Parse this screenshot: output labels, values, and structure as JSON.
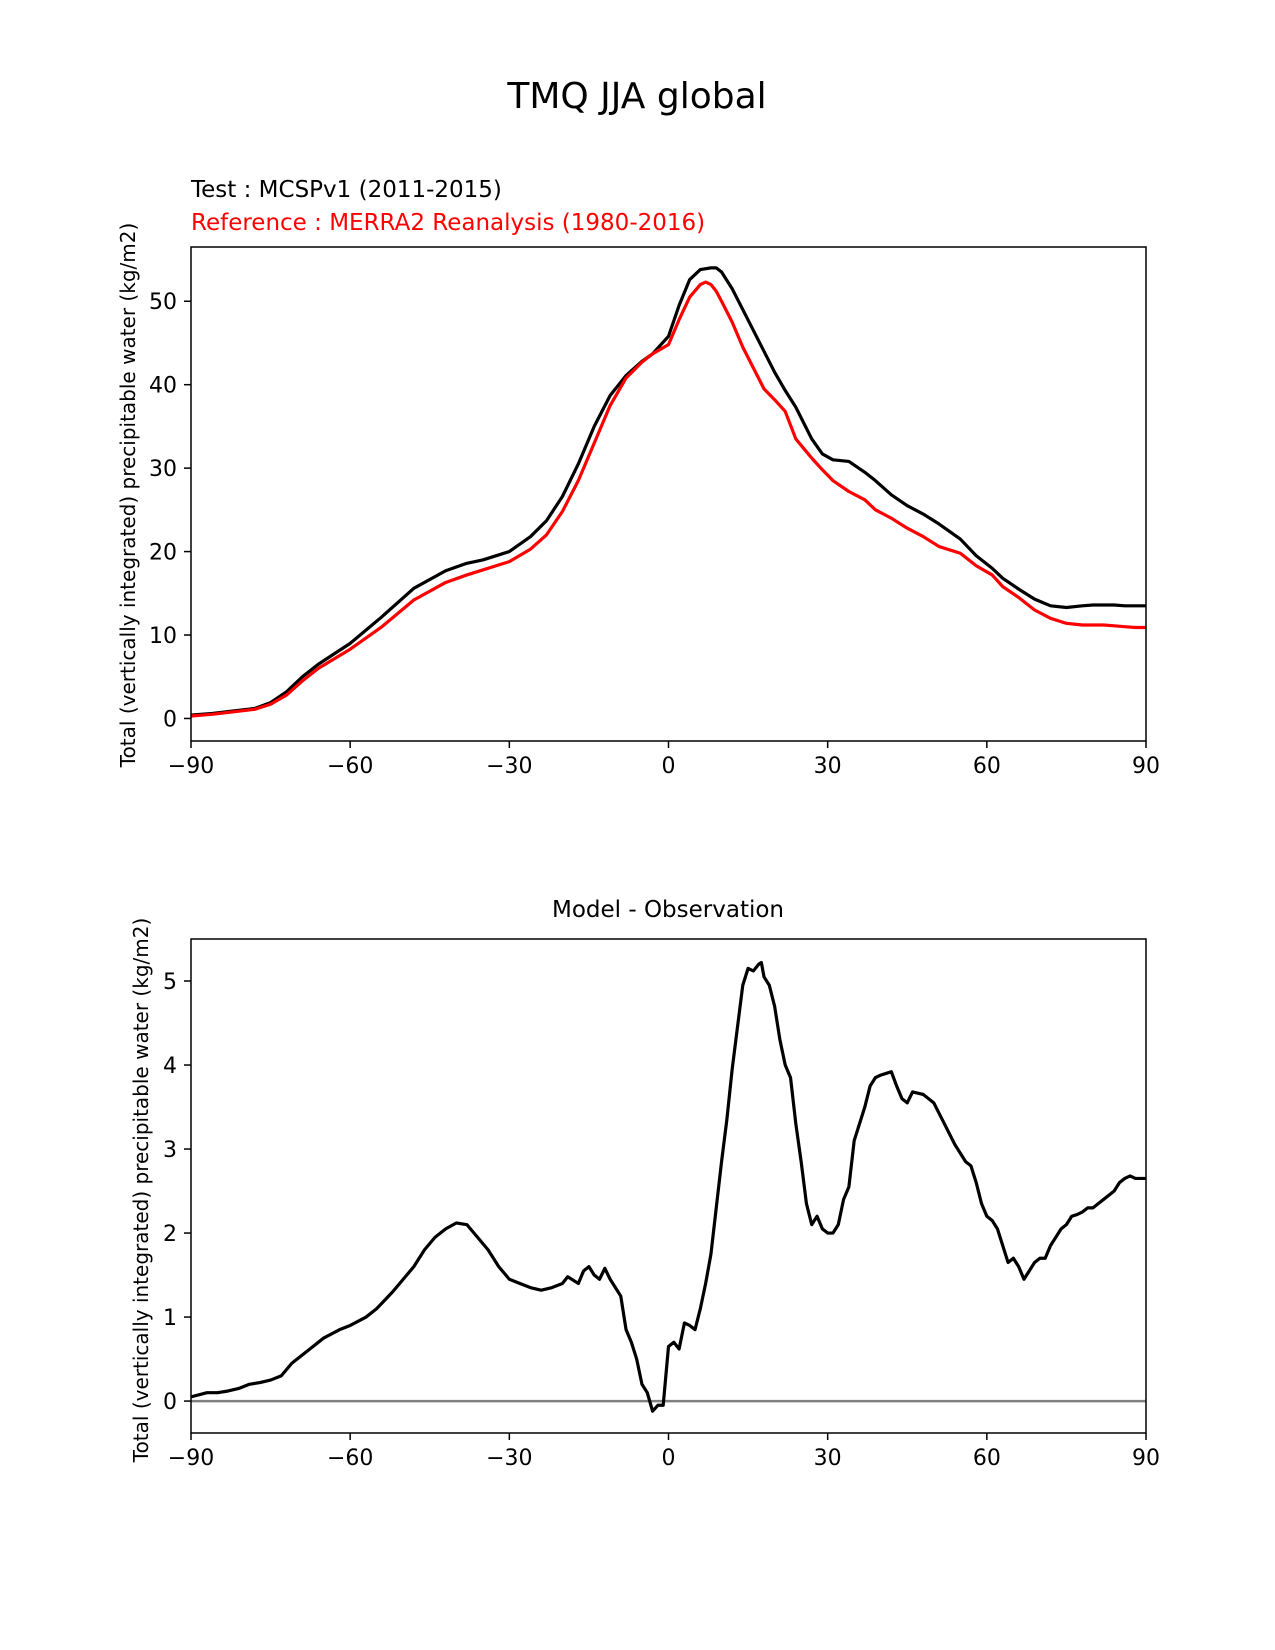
{
  "figure": {
    "title": "TMQ JJA global"
  },
  "chart_data": [
    {
      "type": "line",
      "title_left_test": "Test : MCSPv1 (2011-2015)",
      "title_left_reference": "Reference : MERRA2 Reanalysis (1980-2016)",
      "xlabel": "",
      "ylabel": "Total (vertically integrated) precipitable water (kg/m2)",
      "xlim": [
        -90,
        90
      ],
      "ylim": [
        -2.7,
        56.5
      ],
      "xticks": [
        -90,
        -60,
        -30,
        0,
        30,
        60,
        90
      ],
      "xtick_labels": [
        "−90",
        "−60",
        "−30",
        "0",
        "30",
        "60",
        "90"
      ],
      "yticks": [
        0,
        10,
        20,
        30,
        40,
        50
      ],
      "ytick_labels": [
        "0",
        "10",
        "20",
        "30",
        "40",
        "50"
      ],
      "grid": false,
      "series": [
        {
          "color": "#000000",
          "x": [
            -90,
            -86,
            -82,
            -78,
            -75,
            -72,
            -69,
            -66,
            -60,
            -54,
            -48,
            -42,
            -38,
            -35,
            -30,
            -26,
            -23,
            -20,
            -17,
            -14,
            -11,
            -8,
            -5,
            -3,
            0,
            2,
            4,
            6,
            8,
            9,
            10,
            12,
            14,
            16,
            18,
            20,
            22,
            24,
            27,
            29,
            31,
            34,
            37,
            39,
            42,
            45,
            48,
            51,
            55,
            58,
            61,
            63,
            66,
            69,
            72,
            75,
            78,
            80,
            82,
            84,
            86,
            88,
            90
          ],
          "y": [
            0.4,
            0.6,
            0.9,
            1.2,
            1.9,
            3.2,
            5.0,
            6.5,
            9.0,
            12.2,
            15.6,
            17.7,
            18.6,
            19.0,
            20.0,
            21.8,
            23.7,
            26.6,
            30.5,
            35.0,
            38.7,
            41.1,
            42.8,
            43.7,
            45.8,
            49.5,
            52.6,
            53.8,
            54.0,
            54.0,
            53.5,
            51.5,
            49.0,
            46.5,
            44.0,
            41.5,
            39.3,
            37.3,
            33.5,
            31.7,
            31.0,
            30.8,
            29.5,
            28.5,
            26.8,
            25.5,
            24.5,
            23.3,
            21.5,
            19.5,
            18.0,
            16.8,
            15.5,
            14.3,
            13.5,
            13.3,
            13.5,
            13.6,
            13.6,
            13.6,
            13.5,
            13.5,
            13.5
          ]
        },
        {
          "color": "#ff0000",
          "x": [
            -90,
            -86,
            -82,
            -78,
            -75,
            -72,
            -69,
            -66,
            -60,
            -54,
            -48,
            -42,
            -38,
            -35,
            -30,
            -26,
            -23,
            -20,
            -17,
            -14,
            -11,
            -8,
            -5,
            -3,
            0,
            2,
            4,
            6,
            7,
            8,
            9,
            10,
            12,
            14,
            16,
            18,
            20,
            22,
            24,
            27,
            29,
            31,
            34,
            37,
            39,
            42,
            45,
            48,
            51,
            55,
            58,
            61,
            63,
            66,
            69,
            72,
            75,
            78,
            80,
            82,
            84,
            86,
            88,
            90
          ],
          "y": [
            0.3,
            0.5,
            0.8,
            1.1,
            1.7,
            2.8,
            4.5,
            6.0,
            8.3,
            11.0,
            14.2,
            16.3,
            17.2,
            17.8,
            18.8,
            20.3,
            22.0,
            24.8,
            28.5,
            33.0,
            37.5,
            40.8,
            42.7,
            43.7,
            44.8,
            47.8,
            50.5,
            52.0,
            52.3,
            52.0,
            51.2,
            50.0,
            47.5,
            44.5,
            42.0,
            39.5,
            38.2,
            36.8,
            33.5,
            31.2,
            29.8,
            28.5,
            27.2,
            26.2,
            25.0,
            24.0,
            22.8,
            21.8,
            20.6,
            19.8,
            18.3,
            17.2,
            15.8,
            14.5,
            13.0,
            12.0,
            11.4,
            11.2,
            11.2,
            11.2,
            11.1,
            11.0,
            10.9,
            10.9
          ]
        }
      ]
    },
    {
      "type": "line",
      "title": "Model - Observation",
      "xlabel": "",
      "ylabel": "Total (vertically integrated) precipitable water (kg/m2)",
      "xlim": [
        -90,
        90
      ],
      "ylim": [
        -0.38,
        5.5
      ],
      "xticks": [
        -90,
        -60,
        -30,
        0,
        30,
        60,
        90
      ],
      "xtick_labels": [
        "−90",
        "−60",
        "−30",
        "0",
        "30",
        "60",
        "90"
      ],
      "yticks": [
        0,
        1,
        2,
        3,
        4,
        5
      ],
      "ytick_labels": [
        "0",
        "1",
        "2",
        "3",
        "4",
        "5"
      ],
      "grid": false,
      "zero_line_color": "#808080",
      "series": [
        {
          "color": "#000000",
          "x": [
            -90,
            -87,
            -85,
            -83,
            -81,
            -79,
            -77,
            -75,
            -73,
            -71,
            -69,
            -67,
            -65,
            -62,
            -60,
            -57,
            -55,
            -52,
            -50,
            -48,
            -46,
            -44,
            -42,
            -40,
            -38,
            -36,
            -34,
            -32,
            -30,
            -28,
            -26,
            -24,
            -22,
            -20,
            -19,
            -17,
            -16,
            -15,
            -14,
            -13,
            -12,
            -11,
            -9,
            -8,
            -7,
            -6,
            -5,
            -4,
            -3,
            -2,
            -1,
            0,
            1,
            2,
            3,
            4,
            5,
            6,
            7,
            8,
            9,
            10,
            11,
            12,
            13,
            14,
            15,
            16,
            17,
            17.5,
            18,
            19,
            20,
            21,
            22,
            23,
            24,
            25,
            26,
            27,
            28,
            29,
            30,
            31,
            32,
            33,
            34,
            35,
            36,
            37,
            38,
            39,
            40,
            41,
            42,
            43,
            44,
            45,
            46,
            48,
            50,
            52,
            54,
            56,
            57,
            58,
            59,
            60,
            61,
            62,
            63,
            64,
            65,
            66,
            67,
            68,
            69,
            70,
            71,
            72,
            73,
            74,
            75,
            76,
            77,
            78,
            79,
            80,
            81,
            82,
            83,
            84,
            85,
            86,
            87,
            88,
            90
          ],
          "y": [
            0.05,
            0.1,
            0.1,
            0.12,
            0.15,
            0.2,
            0.22,
            0.25,
            0.3,
            0.45,
            0.55,
            0.65,
            0.75,
            0.85,
            0.9,
            1.0,
            1.1,
            1.3,
            1.45,
            1.6,
            1.8,
            1.95,
            2.05,
            2.12,
            2.1,
            1.95,
            1.8,
            1.6,
            1.45,
            1.4,
            1.35,
            1.32,
            1.35,
            1.4,
            1.48,
            1.4,
            1.55,
            1.6,
            1.5,
            1.45,
            1.58,
            1.45,
            1.25,
            0.85,
            0.7,
            0.5,
            0.2,
            0.1,
            -0.12,
            -0.05,
            -0.05,
            0.65,
            0.7,
            0.62,
            0.93,
            0.9,
            0.85,
            1.1,
            1.4,
            1.75,
            2.3,
            2.85,
            3.35,
            3.95,
            4.45,
            4.95,
            5.15,
            5.12,
            5.2,
            5.22,
            5.05,
            4.95,
            4.7,
            4.3,
            4.0,
            3.85,
            3.3,
            2.85,
            2.35,
            2.1,
            2.2,
            2.05,
            2.0,
            2.0,
            2.1,
            2.4,
            2.55,
            3.1,
            3.3,
            3.5,
            3.75,
            3.85,
            3.88,
            3.9,
            3.92,
            3.75,
            3.6,
            3.55,
            3.68,
            3.65,
            3.55,
            3.3,
            3.05,
            2.85,
            2.8,
            2.6,
            2.35,
            2.2,
            2.15,
            2.05,
            1.85,
            1.65,
            1.7,
            1.6,
            1.45,
            1.55,
            1.65,
            1.7,
            1.7,
            1.85,
            1.95,
            2.05,
            2.1,
            2.2,
            2.22,
            2.25,
            2.3,
            2.3,
            2.35,
            2.4,
            2.45,
            2.5,
            2.6,
            2.65,
            2.68,
            2.65,
            2.65
          ]
        }
      ]
    }
  ]
}
